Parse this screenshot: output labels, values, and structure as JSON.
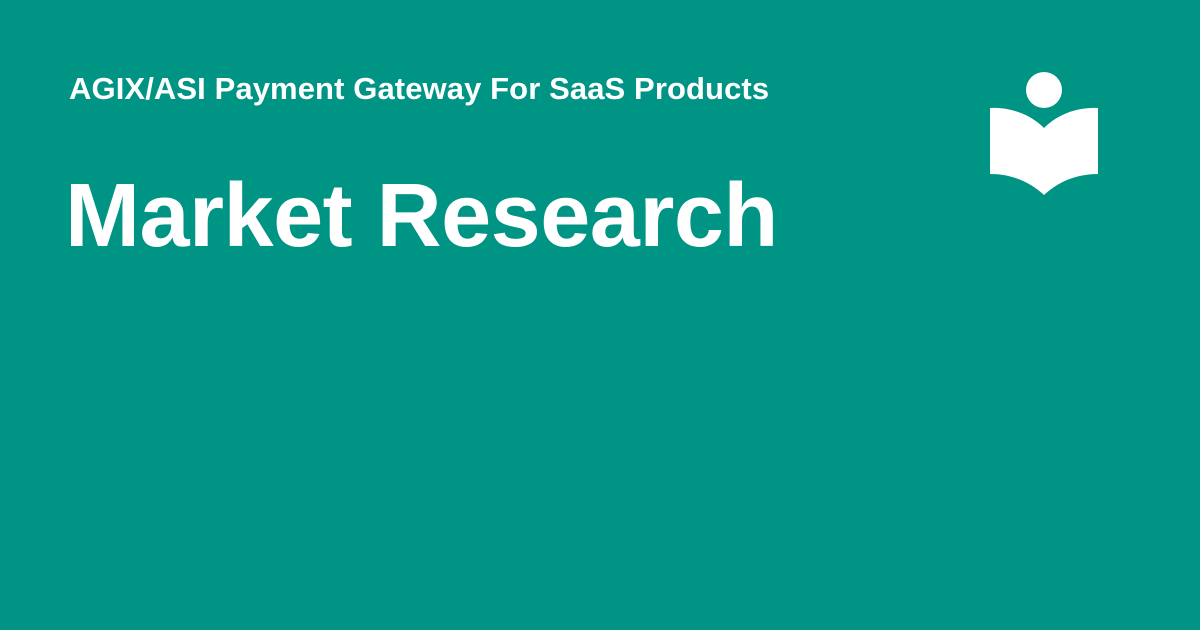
{
  "subtitle": "AGIX/ASI Payment Gateway For SaaS Products",
  "title": "Market Research",
  "logo": {
    "icon": "reader-book-icon"
  },
  "colors": {
    "background": "#009485",
    "foreground": "#ffffff"
  }
}
